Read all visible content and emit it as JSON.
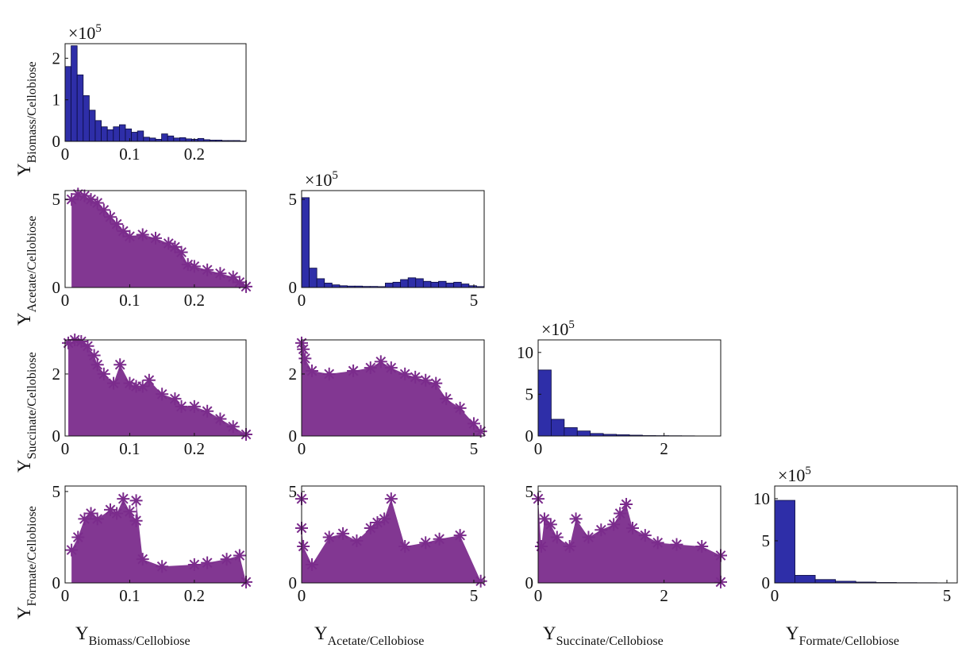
{
  "chart_data": {
    "type": "scatter-matrix",
    "variables": [
      "Biomass/Cellobiose",
      "Acetate/Cellobiose",
      "Succinate/Cellobiose",
      "Formate/Cellobiose"
    ],
    "axis_symbol": "Y",
    "marker": "*",
    "colors": {
      "histogram": "#2e2ea8",
      "scatter": "#7b2c8c"
    },
    "xlabels": [
      "Y",
      "Y",
      "Y",
      "Y"
    ],
    "xlabel_subscripts": [
      "Biomass/Cellobiose",
      "Acetate/Cellobiose",
      "Succinate/Cellobiose",
      "Formate/Cellobiose"
    ],
    "ylabels": [
      "Y",
      "Y",
      "Y",
      "Y"
    ],
    "ylabel_subscripts": [
      "Biomass/Cellobiose",
      "Acetate/Cellobiose",
      "Succinate/Cellobiose",
      "Formate/Cellobiose"
    ],
    "ranges": [
      [
        0,
        0.28
      ],
      [
        0,
        5.3
      ],
      [
        0,
        2.9
      ],
      [
        0,
        5.3
      ]
    ],
    "ticks": [
      {
        "values": [
          0,
          0.1,
          0.2
        ],
        "labels": [
          "0",
          "0.1",
          "0.2"
        ]
      },
      {
        "values": [
          0,
          5
        ],
        "labels": [
          "0",
          "5"
        ]
      },
      {
        "values": [
          0,
          2
        ],
        "labels": [
          "0",
          "2"
        ]
      },
      {
        "values": [
          0,
          5
        ],
        "labels": [
          "0",
          "5"
        ]
      }
    ],
    "scatter_yticks": [
      {
        "values": [
          0,
          5
        ],
        "labels": [
          "0",
          "5"
        ]
      },
      {
        "values": [
          0,
          2
        ],
        "labels": [
          "0",
          "2"
        ]
      },
      {
        "values": [
          0,
          5
        ],
        "labels": [
          "0",
          "5"
        ]
      }
    ],
    "histograms": [
      {
        "var": 0,
        "multiplier": "×10",
        "exponent": "5",
        "ylim": [
          0,
          2.35
        ],
        "yticks": [
          0,
          1,
          2
        ],
        "yticklabels": [
          "0",
          "1",
          "2"
        ],
        "bin_range": [
          0,
          0.28
        ],
        "counts": [
          1.8,
          2.3,
          1.6,
          1.1,
          0.75,
          0.5,
          0.35,
          0.28,
          0.35,
          0.4,
          0.3,
          0.22,
          0.25,
          0.1,
          0.08,
          0.05,
          0.18,
          0.13,
          0.08,
          0.09,
          0.06,
          0.05,
          0.07,
          0.04,
          0.03,
          0.03,
          0.02,
          0.02,
          0.02,
          0.01
        ]
      },
      {
        "var": 1,
        "multiplier": "×10",
        "exponent": "5",
        "ylim": [
          0,
          5.5
        ],
        "yticks": [
          0,
          5
        ],
        "yticklabels": [
          "0",
          "5"
        ],
        "bin_range": [
          0,
          5.3
        ],
        "counts": [
          5.1,
          1.1,
          0.5,
          0.25,
          0.15,
          0.1,
          0.08,
          0.08,
          0.06,
          0.06,
          0.05,
          0.25,
          0.3,
          0.45,
          0.55,
          0.5,
          0.35,
          0.3,
          0.35,
          0.25,
          0.3,
          0.2,
          0.1,
          0.05
        ]
      },
      {
        "var": 2,
        "multiplier": "×10",
        "exponent": "5",
        "ylim": [
          0,
          11.5
        ],
        "yticks": [
          0,
          5,
          10
        ],
        "yticklabels": [
          "0",
          "5",
          "10"
        ],
        "bin_range": [
          0,
          2.9
        ],
        "counts": [
          7.9,
          2.0,
          1.0,
          0.6,
          0.3,
          0.2,
          0.15,
          0.1,
          0.05,
          0.04,
          0.03,
          0.02,
          0.01,
          0.01
        ]
      },
      {
        "var": 3,
        "multiplier": "×10",
        "exponent": "5",
        "ylim": [
          0,
          11.5
        ],
        "yticks": [
          0,
          5,
          10
        ],
        "yticklabels": [
          "0",
          "5",
          "10"
        ],
        "bin_range": [
          0,
          5.3
        ],
        "counts": [
          9.8,
          0.9,
          0.4,
          0.2,
          0.1,
          0.05,
          0.03,
          0.02,
          0.01
        ]
      }
    ],
    "scatter_panels": [
      {
        "x": 0,
        "y": 1,
        "ylim": [
          0,
          5.5
        ],
        "points": [
          [
            0.01,
            5
          ],
          [
            0.02,
            5.3
          ],
          [
            0.03,
            5.2
          ],
          [
            0.04,
            5.0
          ],
          [
            0.05,
            4.8
          ],
          [
            0.06,
            4.4
          ],
          [
            0.07,
            4.0
          ],
          [
            0.08,
            3.6
          ],
          [
            0.09,
            3.2
          ],
          [
            0.1,
            2.9
          ],
          [
            0.12,
            3.0
          ],
          [
            0.14,
            2.8
          ],
          [
            0.16,
            2.5
          ],
          [
            0.17,
            2.3
          ],
          [
            0.18,
            2.0
          ],
          [
            0.19,
            1.3
          ],
          [
            0.2,
            1.2
          ],
          [
            0.22,
            1.0
          ],
          [
            0.24,
            0.8
          ],
          [
            0.26,
            0.6
          ],
          [
            0.27,
            0.3
          ],
          [
            0.28,
            0.05
          ]
        ]
      },
      {
        "x": 0,
        "y": 2,
        "ylim": [
          0,
          3.1
        ],
        "points": [
          [
            0.005,
            3.0
          ],
          [
            0.015,
            3.1
          ],
          [
            0.025,
            3.05
          ],
          [
            0.035,
            2.9
          ],
          [
            0.045,
            2.6
          ],
          [
            0.05,
            2.3
          ],
          [
            0.06,
            2.0
          ],
          [
            0.075,
            1.7
          ],
          [
            0.085,
            2.3
          ],
          [
            0.1,
            1.7
          ],
          [
            0.11,
            1.6
          ],
          [
            0.12,
            1.6
          ],
          [
            0.13,
            1.8
          ],
          [
            0.15,
            1.35
          ],
          [
            0.17,
            1.2
          ],
          [
            0.18,
            0.95
          ],
          [
            0.2,
            0.95
          ],
          [
            0.22,
            0.8
          ],
          [
            0.24,
            0.55
          ],
          [
            0.26,
            0.3
          ],
          [
            0.28,
            0.05
          ]
        ]
      },
      {
        "x": 1,
        "y": 2,
        "ylim": [
          0,
          3.1
        ],
        "points": [
          [
            0.0,
            3.0
          ],
          [
            0.05,
            2.8
          ],
          [
            0.1,
            2.5
          ],
          [
            0.3,
            2.1
          ],
          [
            0.8,
            2.0
          ],
          [
            1.5,
            2.1
          ],
          [
            2.0,
            2.2
          ],
          [
            2.3,
            2.4
          ],
          [
            2.6,
            2.2
          ],
          [
            3.0,
            2.0
          ],
          [
            3.3,
            1.9
          ],
          [
            3.6,
            1.8
          ],
          [
            3.9,
            1.7
          ],
          [
            4.2,
            1.2
          ],
          [
            4.6,
            0.9
          ],
          [
            5.0,
            0.4
          ],
          [
            5.2,
            0.15
          ]
        ]
      },
      {
        "x": 0,
        "y": 3,
        "ylim": [
          0,
          5.3
        ],
        "points": [
          [
            0.01,
            1.8
          ],
          [
            0.02,
            2.5
          ],
          [
            0.03,
            3.5
          ],
          [
            0.04,
            3.8
          ],
          [
            0.05,
            3.5
          ],
          [
            0.07,
            4.0
          ],
          [
            0.08,
            3.8
          ],
          [
            0.09,
            4.6
          ],
          [
            0.1,
            3.9
          ],
          [
            0.11,
            3.4
          ],
          [
            0.11,
            4.5
          ],
          [
            0.12,
            1.3
          ],
          [
            0.15,
            0.9
          ],
          [
            0.2,
            1.0
          ],
          [
            0.22,
            1.1
          ],
          [
            0.25,
            1.3
          ],
          [
            0.27,
            1.5
          ],
          [
            0.28,
            0.05
          ]
        ]
      },
      {
        "x": 1,
        "y": 3,
        "ylim": [
          0,
          5.3
        ],
        "points": [
          [
            0.0,
            4.6
          ],
          [
            0.0,
            3.0
          ],
          [
            0.05,
            2.0
          ],
          [
            0.3,
            1.0
          ],
          [
            0.8,
            2.5
          ],
          [
            1.2,
            2.7
          ],
          [
            1.6,
            2.3
          ],
          [
            2.0,
            3.0
          ],
          [
            2.2,
            3.3
          ],
          [
            2.4,
            3.5
          ],
          [
            2.6,
            4.6
          ],
          [
            3.0,
            2.0
          ],
          [
            3.6,
            2.2
          ],
          [
            4.0,
            2.4
          ],
          [
            4.6,
            2.6
          ],
          [
            5.2,
            0.1
          ]
        ]
      },
      {
        "x": 2,
        "y": 3,
        "ylim": [
          0,
          5.3
        ],
        "points": [
          [
            0.0,
            4.6
          ],
          [
            0.05,
            2.0
          ],
          [
            0.1,
            3.5
          ],
          [
            0.2,
            3.2
          ],
          [
            0.3,
            2.5
          ],
          [
            0.5,
            2.0
          ],
          [
            0.6,
            3.5
          ],
          [
            0.8,
            2.5
          ],
          [
            1.0,
            2.9
          ],
          [
            1.2,
            3.2
          ],
          [
            1.3,
            3.8
          ],
          [
            1.4,
            4.3
          ],
          [
            1.5,
            3.0
          ],
          [
            1.7,
            2.6
          ],
          [
            1.9,
            2.2
          ],
          [
            2.2,
            2.1
          ],
          [
            2.6,
            2.0
          ],
          [
            2.9,
            1.5
          ],
          [
            2.9,
            0.05
          ]
        ]
      }
    ]
  }
}
